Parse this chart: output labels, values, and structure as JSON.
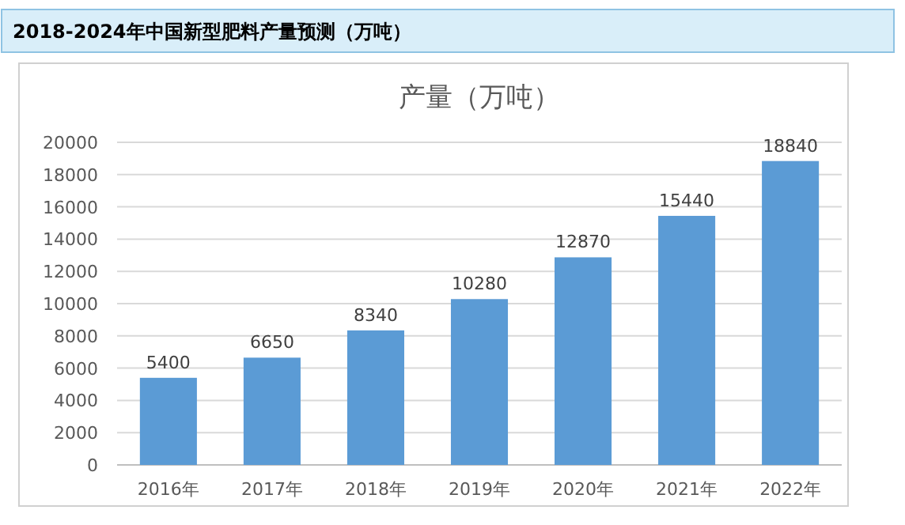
{
  "chart_data": {
    "type": "bar",
    "title": "2018-2024年中国新型肥料产量预测（万吨）",
    "subtitle": "产量（万吨）",
    "categories": [
      "2016年",
      "2017年",
      "2018年",
      "2019年",
      "2020年",
      "2021年",
      "2022年"
    ],
    "values": [
      5400,
      6650,
      8340,
      10280,
      12870,
      15440,
      18840
    ],
    "color": "#5b9bd5",
    "ylim": [
      0,
      20000
    ],
    "yticks": [
      0,
      2000,
      4000,
      6000,
      8000,
      10000,
      12000,
      14000,
      16000,
      18000,
      20000
    ],
    "grid": "y",
    "data_labels": true
  }
}
